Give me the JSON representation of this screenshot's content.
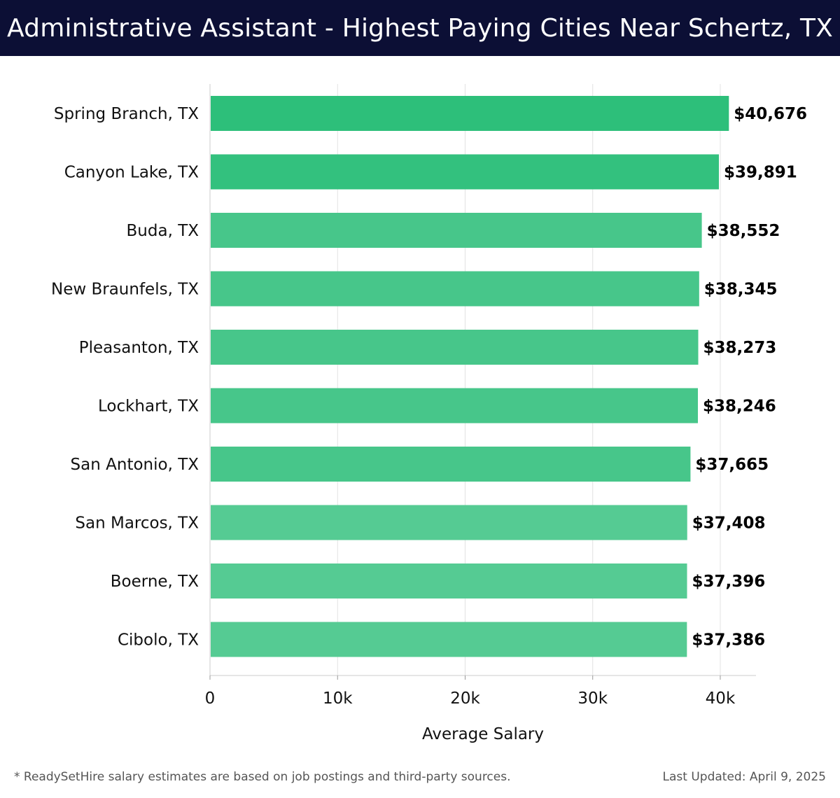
{
  "header": {
    "title": "Administrative Assistant - Highest Paying Cities Near Schertz, TX"
  },
  "footer": {
    "note": "* ReadySetHire salary estimates are based on job postings and third-party sources.",
    "updated": "Last Updated: April 9, 2025"
  },
  "colors": {
    "header_bg": "#0c0f35",
    "bar_top": "#2dbf7a",
    "bar_mid": "#47c68a",
    "bar_light": "#55cb93"
  },
  "chart_data": {
    "type": "bar",
    "orientation": "horizontal",
    "title": "Administrative Assistant - Highest Paying Cities Near Schertz, TX",
    "xlabel": "Average Salary",
    "ylabel": "",
    "xlim": [
      0,
      42800
    ],
    "xticks": [
      0,
      10000,
      20000,
      30000,
      40000
    ],
    "xtick_labels": [
      "0",
      "10k",
      "20k",
      "30k",
      "40k"
    ],
    "grid": true,
    "categories": [
      "Spring Branch, TX",
      "Canyon Lake, TX",
      "Buda, TX",
      "New Braunfels, TX",
      "Pleasanton, TX",
      "Lockhart, TX",
      "San Antonio, TX",
      "San Marcos, TX",
      "Boerne, TX",
      "Cibolo, TX"
    ],
    "values": [
      40676,
      39891,
      38552,
      38345,
      38273,
      38246,
      37665,
      37408,
      37396,
      37386
    ],
    "value_labels": [
      "$40,676",
      "$39,891",
      "$38,552",
      "$38,345",
      "$38,273",
      "$38,246",
      "$37,665",
      "$37,408",
      "$37,396",
      "$37,386"
    ]
  }
}
